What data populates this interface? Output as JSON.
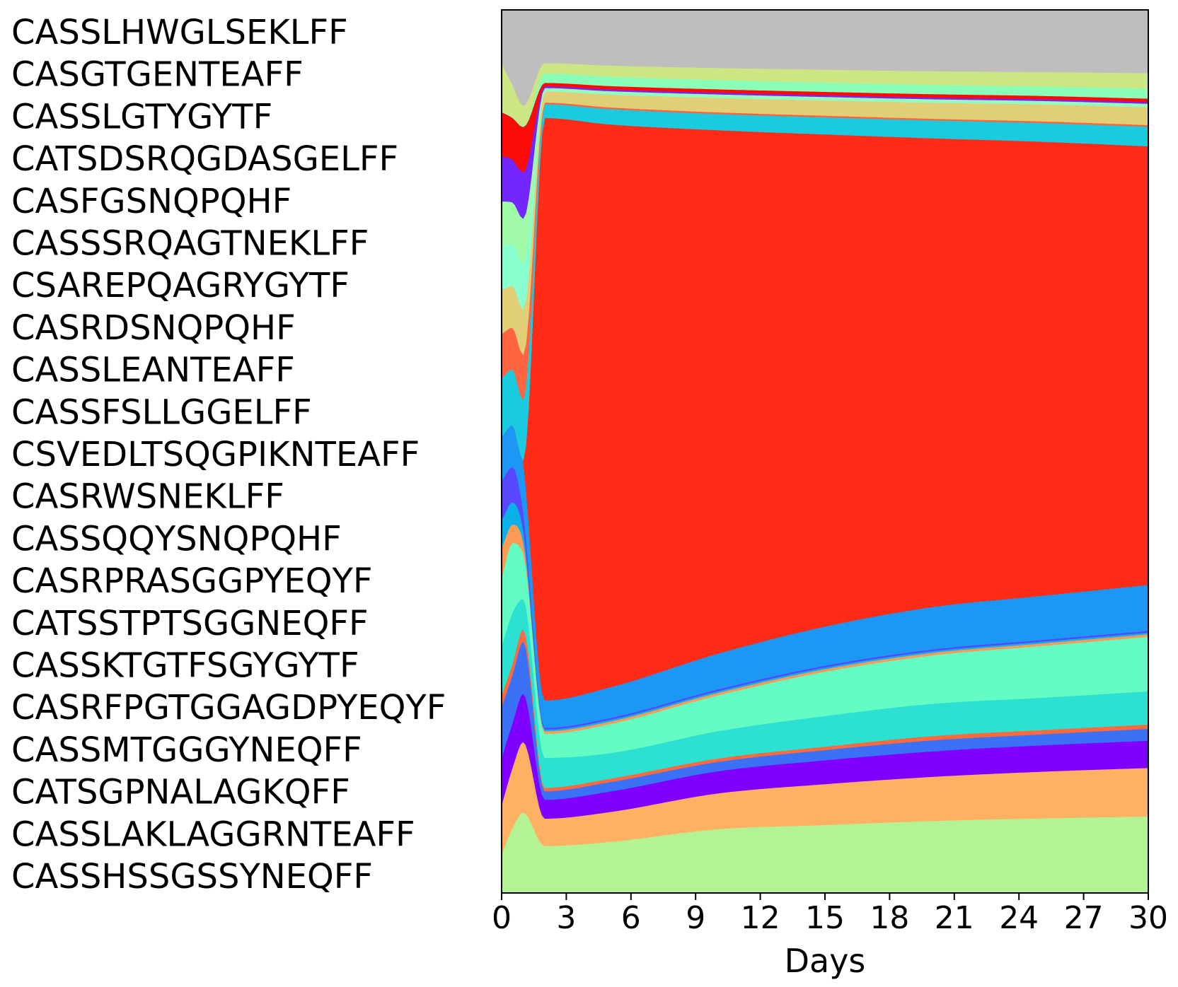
{
  "chart_data": {
    "type": "area",
    "stacked": "normalized",
    "xlabel": "Days",
    "ylabel": "",
    "xlim": [
      0,
      30
    ],
    "xticks": [
      0,
      3,
      6,
      9,
      12,
      15,
      18,
      21,
      24,
      27,
      30
    ],
    "x": [
      0,
      0.5,
      1,
      2,
      5,
      10,
      15,
      20,
      25,
      30
    ],
    "legend_placement": "left",
    "legend_order": "top-to-bottom",
    "legend": [
      "CASSLHWGLSEKLFF",
      "CASGTGENTEAFF",
      "CASSLGTYGYTF",
      "CATSDSRQGDASGELFF",
      "CASFGSNQPQHF",
      "CASSSRQAGTNEKLFF",
      "CSAREPQAGRYGYTF",
      "CASRDSNQPQHF",
      "CASSLEANTEAFF",
      "CASSFSLLGGELFF",
      "CSVEDLTSQGPIKNTEAFF",
      "CASRWSNEKLFF",
      "CASSQQYSNQPQHF",
      "CASRPRASGGPYEQYF",
      "CATSSTPTSGGNEQFF",
      "CASSKTGTFSGYGYTF",
      "CASRFPGTGGAGDPYEQYF",
      "CASSMTGGGYNEQFF",
      "CATSGPNALAGKQFF",
      "CASSLAKLAGGRNTEAFF",
      "CASSHSSGSSYNEQFF"
    ],
    "series": [
      {
        "color": "#b4f393",
        "values": [
          0.04,
          0.07,
          0.08,
          0.055,
          0.06,
          0.075,
          0.08,
          0.085,
          0.088,
          0.09
        ]
      },
      {
        "color": "#feb163",
        "values": [
          0.05,
          0.065,
          0.07,
          0.032,
          0.035,
          0.042,
          0.048,
          0.052,
          0.055,
          0.057
        ]
      },
      {
        "color": "#7f00ff",
        "values": [
          0.048,
          0.048,
          0.048,
          0.022,
          0.024,
          0.026,
          0.028,
          0.03,
          0.031,
          0.032
        ]
      },
      {
        "color": "#3a71f5",
        "values": [
          0.052,
          0.052,
          0.052,
          0.01,
          0.011,
          0.011,
          0.012,
          0.013,
          0.013,
          0.014
        ]
      },
      {
        "color": "#fd6a40",
        "values": [
          0.012,
          0.012,
          0.012,
          0.004,
          0.004,
          0.004,
          0.004,
          0.005,
          0.005,
          0.005
        ]
      },
      {
        "color": "#2ce0d2",
        "values": [
          0.05,
          0.055,
          0.03,
          0.035,
          0.03,
          0.032,
          0.036,
          0.038,
          0.038,
          0.039
        ]
      },
      {
        "color": "#63fdc4",
        "values": [
          0.07,
          0.075,
          0.045,
          0.028,
          0.034,
          0.042,
          0.052,
          0.057,
          0.061,
          0.064
        ]
      },
      {
        "color": "#fa9b58",
        "values": [
          0.03,
          0.02,
          0.012,
          0.003,
          0.003,
          0.003,
          0.003,
          0.003,
          0.003,
          0.003
        ]
      },
      {
        "color": "#0bb1e6",
        "values": [
          0.028,
          0.024,
          0.012,
          0.002,
          0.002,
          0.002,
          0.002,
          0.002,
          0.002,
          0.002
        ]
      },
      {
        "color": "#5847ff",
        "values": [
          0.04,
          0.038,
          0.018,
          0.002,
          0.002,
          0.002,
          0.002,
          0.002,
          0.002,
          0.002
        ]
      },
      {
        "color": "#1c97f3",
        "values": [
          0.045,
          0.045,
          0.05,
          0.032,
          0.036,
          0.042,
          0.046,
          0.05,
          0.052,
          0.054
        ]
      },
      {
        "color": "#fe2b16",
        "values": [
          0.0,
          0.0,
          0.0,
          0.68,
          0.66,
          0.615,
          0.578,
          0.552,
          0.535,
          0.515
        ]
      },
      {
        "color": "#1acbe0",
        "values": [
          0.06,
          0.06,
          0.06,
          0.016,
          0.018,
          0.019,
          0.02,
          0.021,
          0.022,
          0.023
        ]
      },
      {
        "color": "#fe6540",
        "values": [
          0.045,
          0.045,
          0.045,
          0.002,
          0.002,
          0.002,
          0.002,
          0.002,
          0.002,
          0.002
        ]
      },
      {
        "color": "#e1cf77",
        "values": [
          0.045,
          0.045,
          0.045,
          0.013,
          0.015,
          0.017,
          0.018,
          0.019,
          0.02,
          0.021
        ]
      },
      {
        "color": "#89ffd0",
        "values": [
          0.045,
          0.045,
          0.045,
          0.002,
          0.002,
          0.002,
          0.002,
          0.002,
          0.002,
          0.002
        ]
      },
      {
        "color": "#a0f9a6",
        "values": [
          0.045,
          0.045,
          0.045,
          0.002,
          0.002,
          0.002,
          0.002,
          0.002,
          0.002,
          0.002
        ]
      },
      {
        "color": "#7426fe",
        "values": [
          0.046,
          0.046,
          0.046,
          0.002,
          0.002,
          0.002,
          0.002,
          0.002,
          0.002,
          0.002
        ]
      },
      {
        "color": "#fc0a05",
        "values": [
          0.045,
          0.045,
          0.045,
          0.004,
          0.004,
          0.004,
          0.004,
          0.004,
          0.004,
          0.004
        ]
      },
      {
        "color": "#8bffb8",
        "values": [
          0.001,
          0.001,
          0.001,
          0.011,
          0.011,
          0.011,
          0.011,
          0.011,
          0.011,
          0.012
        ]
      },
      {
        "color": "#cde683",
        "values": [
          0.048,
          0.035,
          0.02,
          0.012,
          0.013,
          0.014,
          0.015,
          0.016,
          0.017,
          0.018
        ]
      },
      {
        "color": "#bebebe",
        "values": [
          0.055,
          0.08,
          0.095,
          0.062,
          0.065,
          0.068,
          0.07,
          0.072,
          0.073,
          0.074
        ]
      }
    ]
  }
}
